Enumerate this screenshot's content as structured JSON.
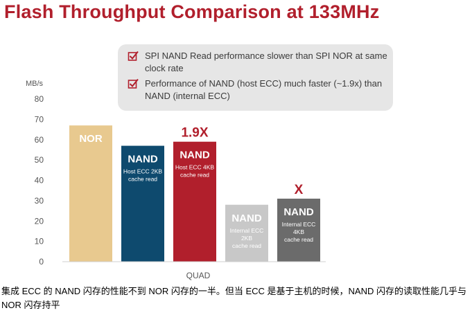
{
  "header": {
    "title": "Flash Throughput Comparison at 133MHz"
  },
  "callout": {
    "bullets": [
      "SPI NAND Read performance slower than SPI NOR at same clock rate",
      "Performance of NAND (host ECC) much faster (~1.9x) than NAND (internal ECC)"
    ]
  },
  "chart_data": {
    "type": "bar",
    "ylabel": "MB/s",
    "xlabel": "QUAD",
    "ylim": [
      0,
      80
    ],
    "yticks": [
      0,
      10,
      20,
      30,
      40,
      50,
      60,
      70,
      80
    ],
    "grid": false,
    "legend": "none",
    "bars": [
      {
        "name": "NOR",
        "sublabel": [],
        "value": 67,
        "color": "#e8c98f",
        "text_color": "#ffffff"
      },
      {
        "name": "NAND",
        "sublabel": [
          "Host ECC 2KB",
          "cache read"
        ],
        "value": 57,
        "color": "#0e4a6e",
        "text_color": "#ffffff"
      },
      {
        "name": "NAND",
        "sublabel": [
          "Host ECC 4KB",
          "cache read"
        ],
        "value": 59,
        "color": "#b11f2c",
        "text_color": "#ffffff"
      },
      {
        "name": "NAND",
        "sublabel": [
          "Internal ECC",
          "2KB",
          "cache read"
        ],
        "value": 28,
        "color": "#c8c8c8",
        "text_color": "#ffffff"
      },
      {
        "name": "NAND",
        "sublabel": [
          "Internal ECC",
          "4KB",
          "cache read"
        ],
        "value": 31,
        "color": "#6b6b6b",
        "text_color": "#ffffff"
      }
    ],
    "annotations": [
      {
        "text": "1.9X",
        "bar_index": 2,
        "color": "#b11f2c"
      },
      {
        "text": "X",
        "bar_index": 4,
        "color": "#b11f2c"
      }
    ]
  },
  "caption": "集成 ECC 的 NAND 闪存的性能不到 NOR 闪存的一半。但当 ECC 是基于主机的时候，NAND 闪存的读取性能几乎与 NOR 闪存持平"
}
